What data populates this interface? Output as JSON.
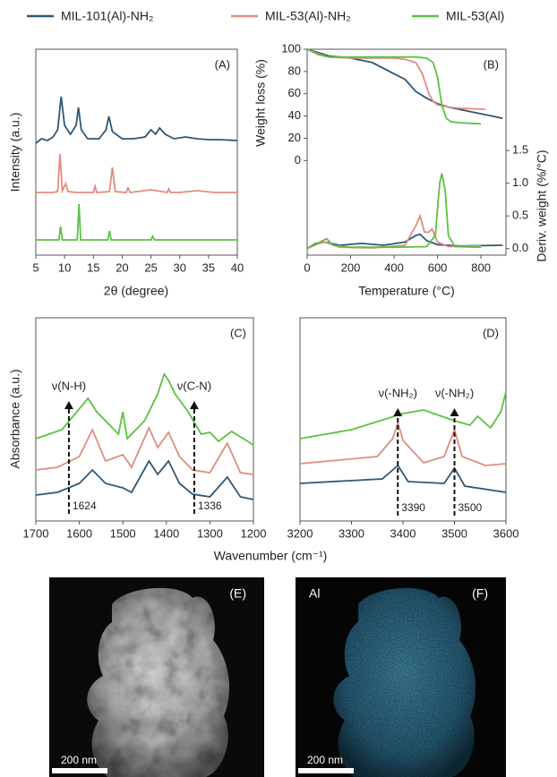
{
  "chart_data": [
    {
      "type": "line",
      "panel_label": "(A)",
      "xlabel": "2θ (degree)",
      "ylabel": "Intensity (a.u.)",
      "xlim": [
        5,
        40
      ],
      "ylim": [
        0,
        230
      ],
      "xticks": [
        5,
        10,
        15,
        20,
        25,
        30,
        35,
        40
      ],
      "series": [
        {
          "name": "MIL-101(Al)-NH₂",
          "color": "#2f5878",
          "x": [
            5,
            6,
            7,
            8,
            8.8,
            9.4,
            10,
            11,
            12,
            12.4,
            12.9,
            14,
            16,
            17.2,
            17.7,
            18.3,
            20,
            22,
            24,
            25,
            25.8,
            26.5,
            27.5,
            29,
            31,
            33,
            35,
            37,
            40
          ],
          "values": [
            125,
            130,
            128,
            132,
            140,
            177,
            145,
            135,
            145,
            165,
            140,
            130,
            130,
            140,
            155,
            138,
            130,
            130,
            132,
            140,
            135,
            142,
            135,
            130,
            132,
            130,
            129,
            129,
            128
          ]
        },
        {
          "name": "MIL-53(Al)-NH₂",
          "color": "#df8c80",
          "x": [
            5,
            8,
            8.8,
            9.2,
            9.6,
            10.2,
            10.6,
            12,
            15,
            15.3,
            15.6,
            17.8,
            18.3,
            18.8,
            20.7,
            21,
            21.4,
            25,
            27.8,
            28.1,
            28.4,
            30,
            33,
            36,
            40
          ],
          "values": [
            70,
            70,
            71,
            113,
            72,
            80,
            71,
            70,
            70,
            77,
            70,
            71,
            98,
            71,
            70,
            75,
            70,
            73,
            70,
            74,
            70,
            70,
            72,
            70,
            70
          ]
        },
        {
          "name": "MIL-53(Al)",
          "color": "#5cc142",
          "x": [
            5,
            9,
            9.3,
            9.6,
            12.2,
            12.5,
            12.8,
            17.5,
            17.8,
            18.1,
            25,
            25.3,
            25.6,
            40
          ],
          "values": [
            17,
            17,
            32,
            17,
            17,
            57,
            17,
            17,
            27,
            17,
            17,
            21,
            17,
            17
          ]
        }
      ]
    },
    {
      "type": "line",
      "panel_label": "(B)",
      "xlabel": "Temperature (°C)",
      "ylabel": "Weight loss (%)",
      "y2label": "Deriv. weight (%/°C)",
      "xlim": [
        0,
        915
      ],
      "ylim": [
        -85,
        100
      ],
      "y2lim": [
        -0.1,
        3.05
      ],
      "xticks": [
        0,
        200,
        400,
        600,
        800
      ],
      "yticks": [
        0,
        20,
        40,
        60,
        80,
        100
      ],
      "y2ticks": [
        {
          "value": 0,
          "label": "0.0"
        },
        0.5,
        {
          "value": 1,
          "label": "1.0"
        },
        1.5
      ],
      "series": [
        {
          "color": "#2f5878",
          "x": [
            0,
            50,
            100,
            200,
            300,
            400,
            450,
            500,
            550,
            600,
            650,
            700,
            800,
            900
          ],
          "values": [
            100,
            97,
            94,
            92,
            88,
            78,
            73,
            62,
            56,
            51,
            48,
            46,
            42,
            38
          ]
        },
        {
          "color": "#df8c80",
          "x": [
            0,
            50,
            100,
            200,
            300,
            400,
            450,
            500,
            530,
            560,
            580,
            600,
            650,
            700,
            820
          ],
          "values": [
            100,
            95,
            93,
            92,
            92,
            92,
            91,
            88,
            78,
            60,
            53,
            50,
            48,
            47,
            46
          ]
        },
        {
          "color": "#5cc142",
          "x": [
            0,
            50,
            100,
            200,
            400,
            500,
            550,
            580,
            600,
            620,
            640,
            660,
            700,
            800
          ],
          "values": [
            100,
            96,
            93,
            93,
            93,
            93,
            92,
            88,
            75,
            50,
            38,
            35,
            34,
            33
          ]
        },
        {
          "color": "#2f5878",
          "axis": "y2",
          "x": [
            0,
            40,
            80,
            150,
            250,
            350,
            450,
            500,
            520,
            550,
            600,
            700,
            900
          ],
          "values": [
            0,
            0.08,
            0.1,
            0.05,
            0.08,
            0.05,
            0.1,
            0.2,
            0.22,
            0.12,
            0.06,
            0.04,
            0.05
          ]
        },
        {
          "color": "#df8c80",
          "axis": "y2",
          "x": [
            0,
            40,
            80,
            150,
            300,
            450,
            500,
            520,
            540,
            560,
            575,
            600,
            650,
            800
          ],
          "values": [
            0,
            0.06,
            0.1,
            0.02,
            0.01,
            0.05,
            0.35,
            0.5,
            0.25,
            0.25,
            0.3,
            0.1,
            0.03,
            0.04
          ]
        },
        {
          "color": "#5cc142",
          "axis": "y2",
          "x": [
            0,
            30,
            70,
            90,
            120,
            200,
            400,
            550,
            590,
            610,
            620,
            635,
            650,
            680,
            800
          ],
          "values": [
            0,
            0.05,
            0.12,
            0.15,
            0.05,
            0.02,
            0.02,
            0.03,
            0.2,
            1.0,
            1.15,
            0.9,
            0.2,
            0.03,
            0.02
          ]
        }
      ]
    },
    {
      "type": "line",
      "panel_label": "(C)",
      "xlabel": "Wavenumber (cm⁻¹)",
      "ylabel": "Absorbance (a.u.)",
      "xlim": [
        1700,
        1200
      ],
      "ylim": [
        0,
        227
      ],
      "xticks": [
        1700,
        1600,
        1500,
        1400,
        1300,
        1200
      ],
      "annotations": [
        {
          "value": 1624,
          "text": "ν(N-H)"
        },
        {
          "value": 1336,
          "text": "ν(C-N)"
        }
      ],
      "series": [
        {
          "color": "#2f5878",
          "x": [
            1700,
            1650,
            1600,
            1570,
            1540,
            1500,
            1480,
            1440,
            1420,
            1395,
            1370,
            1340,
            1300,
            1260,
            1230,
            1200
          ],
          "values": [
            29,
            32,
            42,
            57,
            42,
            37,
            32,
            67,
            52,
            67,
            42,
            30,
            27,
            49,
            27,
            24
          ]
        },
        {
          "color": "#df8c80",
          "x": [
            1700,
            1650,
            1600,
            1570,
            1540,
            1500,
            1480,
            1440,
            1420,
            1395,
            1370,
            1340,
            1300,
            1260,
            1230,
            1200
          ],
          "values": [
            57,
            60,
            72,
            102,
            67,
            74,
            60,
            104,
            82,
            99,
            72,
            57,
            54,
            87,
            54,
            52
          ]
        },
        {
          "color": "#5cc142",
          "x": [
            1700,
            1640,
            1580,
            1560,
            1510,
            1500,
            1490,
            1450,
            1420,
            1405,
            1395,
            1380,
            1350,
            1320,
            1300,
            1280,
            1250,
            1200
          ],
          "values": [
            92,
            102,
            137,
            122,
            97,
            122,
            92,
            112,
            142,
            164,
            157,
            142,
            122,
            97,
            99,
            89,
            100,
            85
          ]
        }
      ]
    },
    {
      "type": "line",
      "panel_label": "(D)",
      "xlim": [
        3200,
        3600
      ],
      "ylim": [
        0,
        227
      ],
      "xticks": [
        3200,
        3300,
        3400,
        3500,
        3600
      ],
      "annotations": [
        {
          "value": 3390,
          "text": "ν(-NH₂)"
        },
        {
          "value": 3500,
          "text": "ν(-NH₂)"
        }
      ],
      "series": [
        {
          "color": "#2f5878",
          "x": [
            3200,
            3360,
            3390,
            3410,
            3480,
            3500,
            3520,
            3600
          ],
          "values": [
            42,
            47,
            62,
            44,
            42,
            59,
            39,
            32
          ]
        },
        {
          "color": "#df8c80",
          "x": [
            3200,
            3350,
            3380,
            3390,
            3400,
            3440,
            3480,
            3500,
            3515,
            3560,
            3600
          ],
          "values": [
            64,
            72,
            92,
            110,
            90,
            65,
            72,
            102,
            72,
            62,
            64
          ]
        },
        {
          "color": "#5cc142",
          "x": [
            3200,
            3300,
            3400,
            3440,
            3500,
            3530,
            3545,
            3570,
            3590,
            3600
          ],
          "values": [
            92,
            102,
            120,
            124,
            112,
            107,
            117,
            104,
            122,
            144
          ]
        }
      ]
    }
  ],
  "images": [
    {
      "label": "(E)",
      "scale_bar": "200 nm"
    },
    {
      "label": "(F)",
      "element": "Al",
      "scale_bar": "200 nm"
    }
  ]
}
